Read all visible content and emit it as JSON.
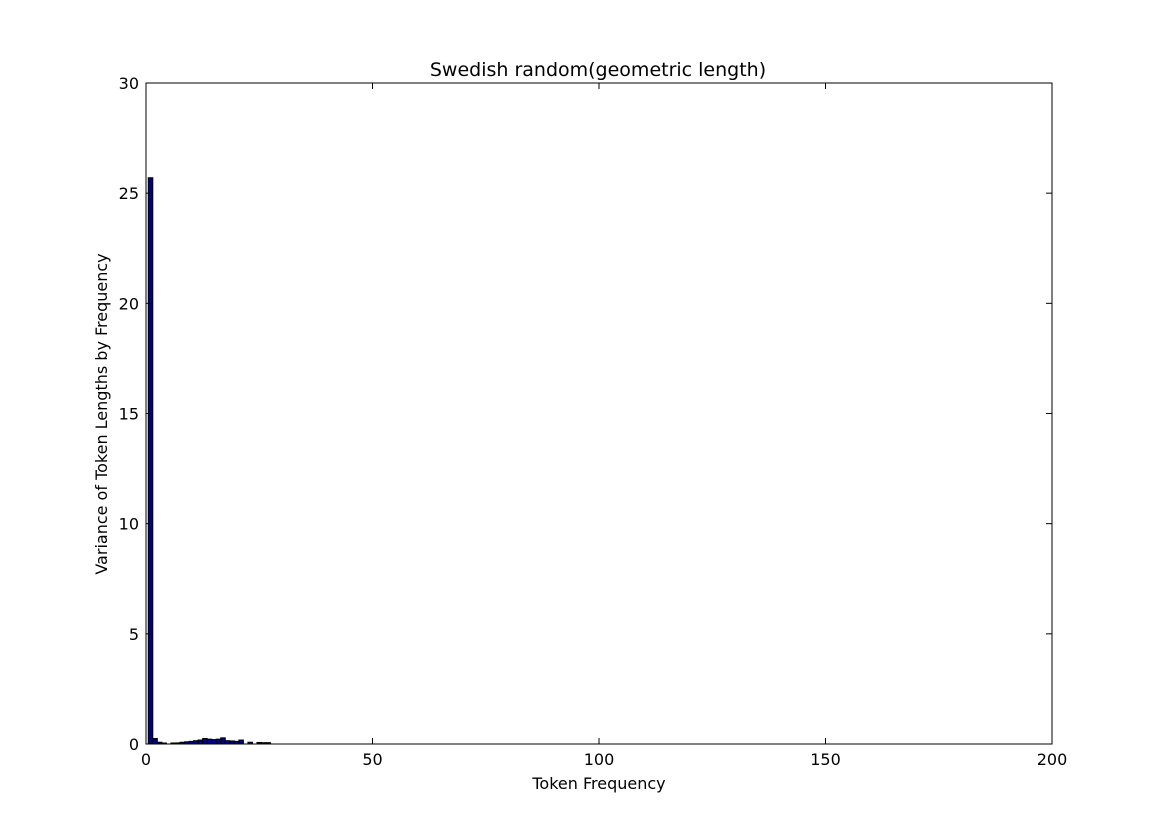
{
  "chart_data": {
    "type": "bar",
    "title": "Swedish random(geometric length)",
    "xlabel": "Token Frequency",
    "ylabel": "Variance of Token Lengths by Frequency",
    "xlim": [
      0,
      200
    ],
    "ylim": [
      0,
      30
    ],
    "xticks": [
      0,
      50,
      100,
      150,
      200
    ],
    "yticks": [
      0,
      5,
      10,
      15,
      20,
      25,
      30
    ],
    "grid": false,
    "bar_color": "#00008b",
    "bar_edge_color": "#000000",
    "bars": [
      {
        "x": 1,
        "y": 25.7
      },
      {
        "x": 2,
        "y": 0.25
      },
      {
        "x": 3,
        "y": 0.08
      },
      {
        "x": 4,
        "y": 0.04
      },
      {
        "x": 6,
        "y": 0.03
      },
      {
        "x": 7,
        "y": 0.05
      },
      {
        "x": 8,
        "y": 0.08
      },
      {
        "x": 9,
        "y": 0.1
      },
      {
        "x": 10,
        "y": 0.12
      },
      {
        "x": 11,
        "y": 0.15
      },
      {
        "x": 12,
        "y": 0.18
      },
      {
        "x": 13,
        "y": 0.25
      },
      {
        "x": 14,
        "y": 0.22
      },
      {
        "x": 15,
        "y": 0.2
      },
      {
        "x": 16,
        "y": 0.22
      },
      {
        "x": 17,
        "y": 0.28
      },
      {
        "x": 18,
        "y": 0.15
      },
      {
        "x": 19,
        "y": 0.14
      },
      {
        "x": 20,
        "y": 0.12
      },
      {
        "x": 21,
        "y": 0.18
      },
      {
        "x": 23,
        "y": 0.08
      },
      {
        "x": 25,
        "y": 0.07
      },
      {
        "x": 26,
        "y": 0.06
      },
      {
        "x": 27,
        "y": 0.06
      }
    ]
  }
}
